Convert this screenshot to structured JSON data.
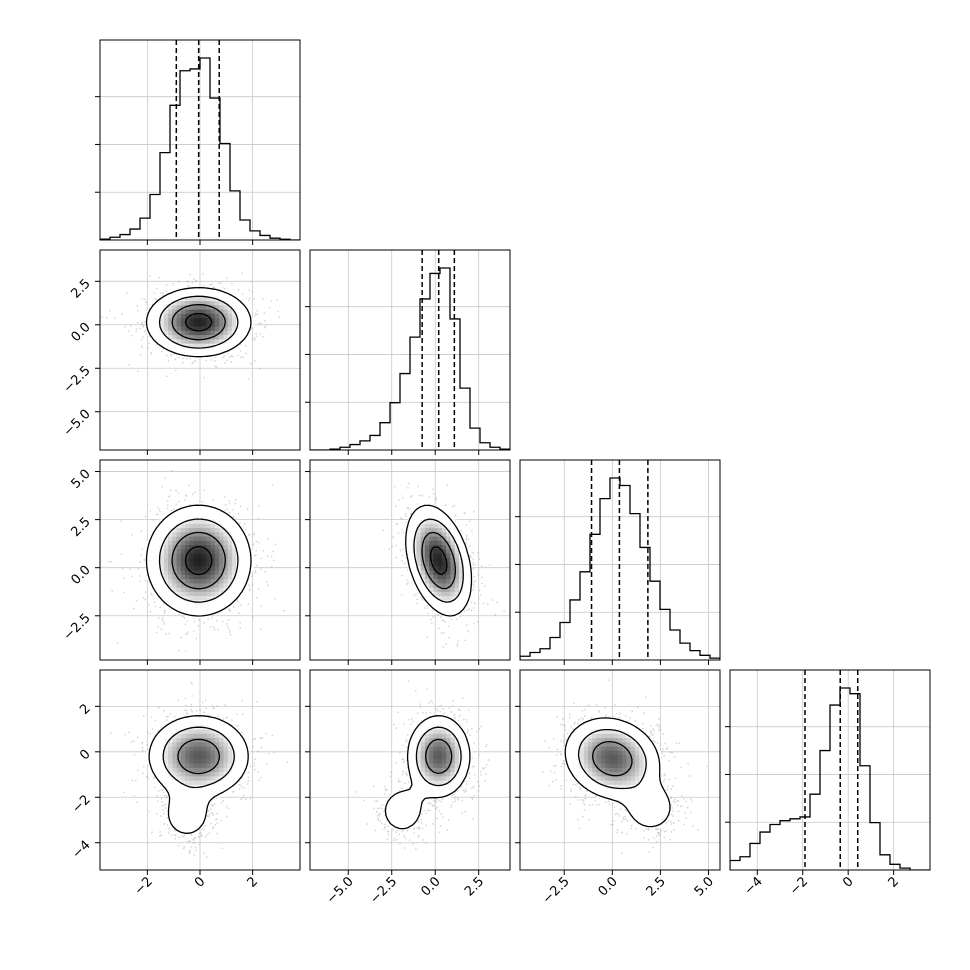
{
  "chart_data": {
    "type": "corner",
    "title": "",
    "n_dims": 4,
    "quantiles": [
      0.16,
      0.5,
      0.84
    ],
    "grid": true,
    "colors": {
      "hist": "#000000",
      "scatter": "#999999",
      "contour": "#000000",
      "grid": "#c8c8c8"
    },
    "ranges": [
      [
        -3.8,
        3.8
      ],
      [
        -7.2,
        4.3
      ],
      [
        -4.8,
        5.6
      ],
      [
        -5.2,
        3.6
      ]
    ],
    "ticks": [
      [
        -2,
        0,
        2
      ],
      [
        -5.0,
        -2.5,
        0.0,
        2.5
      ],
      [
        -2.5,
        0.0,
        2.5,
        5.0
      ],
      [
        -4,
        -2,
        0,
        2
      ]
    ],
    "tick_labels": [
      [
        "−2",
        "0",
        "2"
      ],
      [
        "−5.0",
        "−2.5",
        "0.0",
        "2.5"
      ],
      [
        "−2.5",
        "0.0",
        "2.5",
        "5.0"
      ],
      [
        "−4",
        "−2",
        "0",
        "2"
      ]
    ],
    "y_tick_labels": {
      "1": [
        "−5.0",
        "−2.5",
        "0.0",
        "2.5"
      ],
      "2": [
        "−2.5",
        "0.0",
        "2.5",
        "5.0"
      ],
      "3": [
        "−4",
        "−2",
        "0",
        "2"
      ]
    },
    "marginals": [
      {
        "dim": 0,
        "bin_edges": [
          -3.8,
          -3.42,
          -3.04,
          -2.66,
          -2.28,
          -1.9,
          -1.52,
          -1.14,
          -0.76,
          -0.38,
          0.0,
          0.38,
          0.76,
          1.14,
          1.52,
          1.9,
          2.28,
          2.66,
          3.04,
          3.42,
          3.8
        ],
        "counts": [
          0.005,
          0.015,
          0.03,
          0.06,
          0.12,
          0.25,
          0.48,
          0.74,
          0.93,
          0.94,
          1.0,
          0.78,
          0.53,
          0.27,
          0.11,
          0.05,
          0.025,
          0.01,
          0.004,
          0.0
        ],
        "quantile_values": [
          -0.9,
          -0.05,
          0.73
        ]
      },
      {
        "dim": 1,
        "bin_edges": [
          -7.2,
          -6.625,
          -6.05,
          -5.475,
          -4.9,
          -4.325,
          -3.75,
          -3.175,
          -2.6,
          -2.025,
          -1.45,
          -0.875,
          -0.3,
          0.275,
          0.85,
          1.425,
          2.0,
          2.575,
          3.15,
          3.725,
          4.3
        ],
        "counts": [
          0.0,
          0.0,
          0.005,
          0.015,
          0.03,
          0.05,
          0.08,
          0.15,
          0.26,
          0.42,
          0.62,
          0.83,
          0.97,
          1.0,
          0.72,
          0.34,
          0.12,
          0.04,
          0.015,
          0.005
        ],
        "quantile_values": [
          -0.75,
          0.2,
          1.1
        ]
      },
      {
        "dim": 2,
        "bin_edges": [
          -4.8,
          -4.28,
          -3.76,
          -3.24,
          -2.72,
          -2.2,
          -1.68,
          -1.16,
          -0.64,
          -0.12,
          0.4,
          0.92,
          1.44,
          1.96,
          2.48,
          3.0,
          3.52,
          4.04,
          4.56,
          5.08,
          5.6
        ],
        "counts": [
          0.02,
          0.04,
          0.06,
          0.12,
          0.2,
          0.32,
          0.47,
          0.67,
          0.86,
          0.97,
          0.93,
          0.78,
          0.6,
          0.42,
          0.27,
          0.16,
          0.09,
          0.05,
          0.025,
          0.01
        ],
        "quantile_values": [
          -1.08,
          0.37,
          1.85
        ]
      },
      {
        "dim": 3,
        "bin_edges": [
          -5.2,
          -4.76,
          -4.32,
          -3.88,
          -3.44,
          -3.0,
          -2.56,
          -2.12,
          -1.68,
          -1.24,
          -0.8,
          -0.36,
          0.08,
          0.52,
          0.96,
          1.4,
          1.84,
          2.28,
          2.72,
          3.16,
          3.6
        ],
        "counts": [
          0.05,
          0.07,
          0.14,
          0.2,
          0.24,
          0.26,
          0.27,
          0.28,
          0.4,
          0.63,
          0.87,
          0.96,
          0.93,
          0.55,
          0.25,
          0.08,
          0.03,
          0.01,
          0.0,
          0.0
        ],
        "quantile_values": [
          -1.9,
          -0.35,
          0.42
        ]
      }
    ],
    "pairs": [
      {
        "x_dim": 0,
        "y_dim": 1,
        "center": [
          -0.05,
          0.15
        ],
        "sigma": [
          1.0,
          1.0
        ],
        "rho": 0.0
      },
      {
        "x_dim": 0,
        "y_dim": 2,
        "center": [
          -0.05,
          0.37
        ],
        "sigma": [
          1.0,
          1.45
        ],
        "rho": 0.0
      },
      {
        "x_dim": 1,
        "y_dim": 2,
        "center": [
          0.2,
          0.37
        ],
        "sigma": [
          0.95,
          1.45
        ],
        "rho": -0.35
      },
      {
        "x_dim": 0,
        "y_dim": 3,
        "center": [
          -0.05,
          -0.2
        ],
        "sigma": [
          1.0,
          0.95
        ],
        "rho": 0.0,
        "secondary": {
          "center": [
            -0.5,
            -2.8
          ],
          "sigma": [
            0.55,
            0.65
          ],
          "weight": 0.18
        }
      },
      {
        "x_dim": 1,
        "y_dim": 3,
        "center": [
          0.2,
          -0.2
        ],
        "sigma": [
          0.95,
          0.95
        ],
        "rho": 0.0,
        "secondary": {
          "center": [
            -1.9,
            -2.6
          ],
          "sigma": [
            0.8,
            0.65
          ],
          "weight": 0.18
        }
      },
      {
        "x_dim": 2,
        "y_dim": 3,
        "center": [
          0.0,
          -0.3
        ],
        "sigma": [
          1.3,
          0.95
        ],
        "rho": -0.15,
        "secondary": {
          "center": [
            2.0,
            -2.5
          ],
          "sigma": [
            0.8,
            0.65
          ],
          "weight": 0.18
        }
      }
    ]
  }
}
